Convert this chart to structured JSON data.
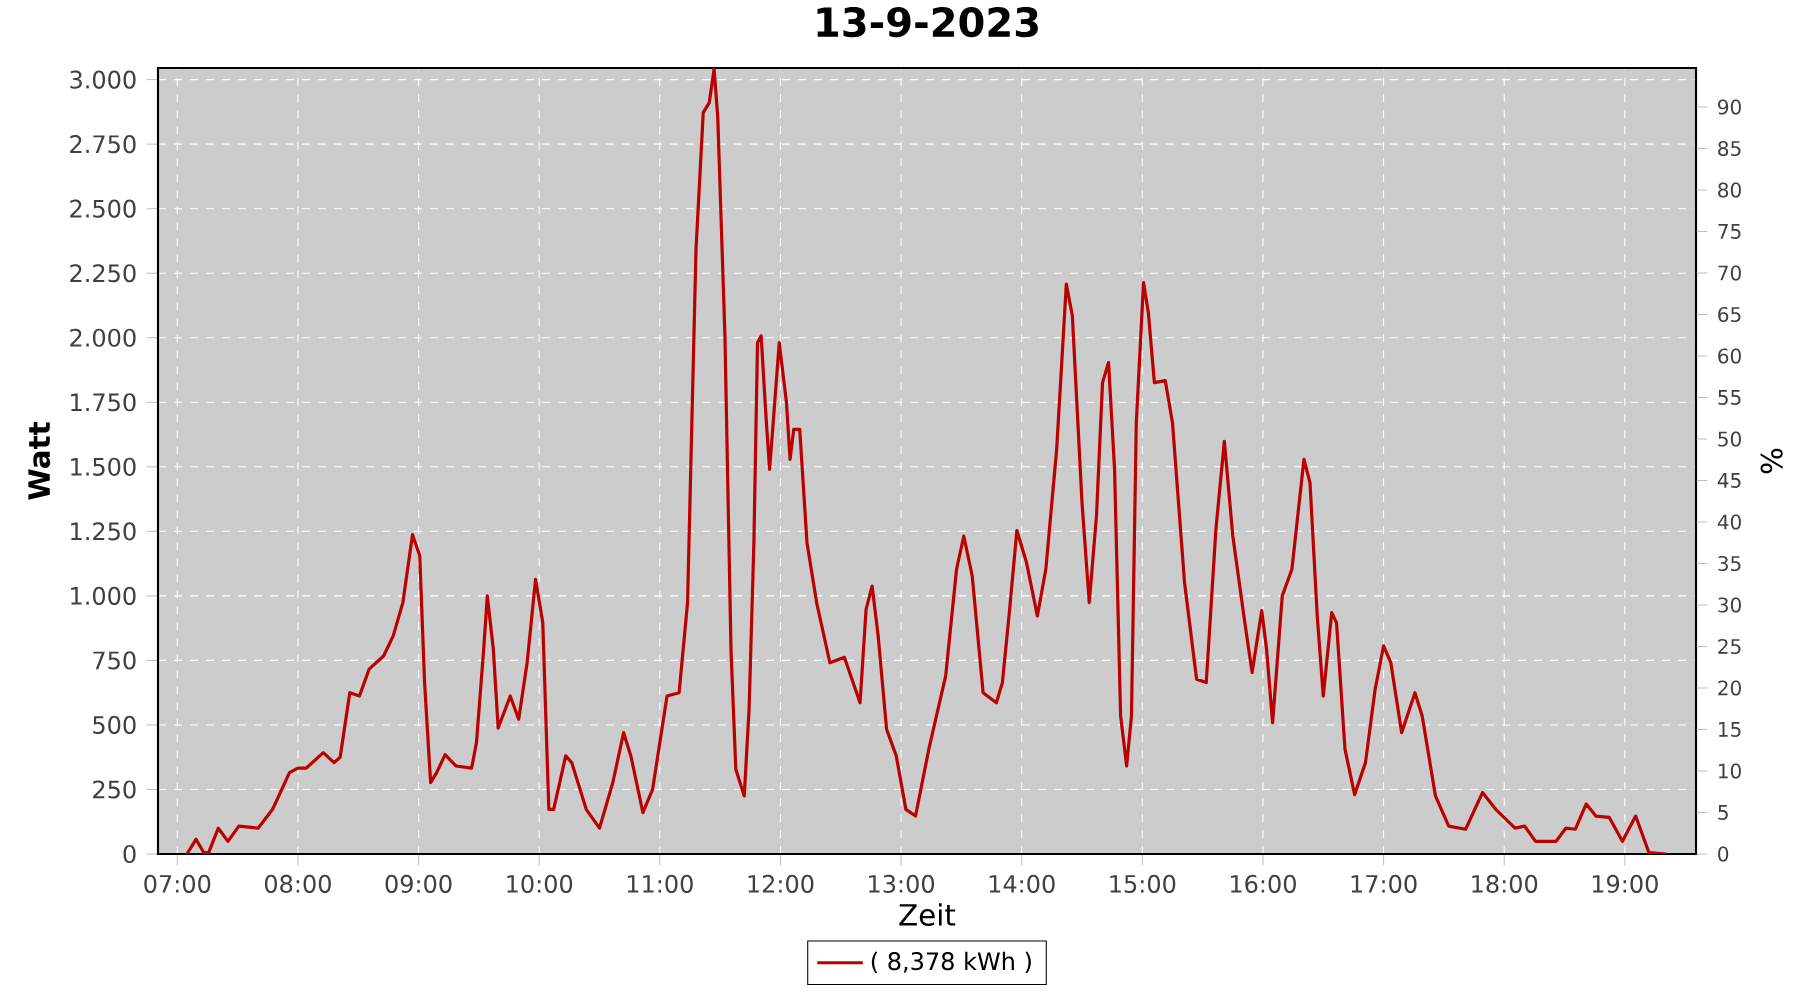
{
  "chart_data": {
    "type": "line",
    "title": "13-9-2023",
    "xlabel": "Zeit",
    "ylabel": "Watt",
    "y2label": "%",
    "x": [
      7.08,
      7.155,
      7.22,
      7.26,
      7.34,
      7.42,
      7.51,
      7.67,
      7.79,
      7.93,
      8.0,
      8.07,
      8.21,
      8.3,
      8.35,
      8.43,
      8.51,
      8.59,
      8.71,
      8.79,
      8.87,
      8.95,
      9.01,
      9.05,
      9.1,
      9.15,
      9.22,
      9.31,
      9.44,
      9.48,
      9.54,
      9.57,
      9.62,
      9.66,
      9.76,
      9.83,
      9.9,
      9.97,
      10.03,
      10.08,
      10.12,
      10.22,
      10.27,
      10.39,
      10.5,
      10.61,
      10.7,
      10.76,
      10.86,
      10.94,
      11.06,
      11.16,
      11.23,
      11.3,
      11.36,
      11.41,
      11.45,
      11.48,
      11.54,
      11.59,
      11.63,
      11.7,
      11.74,
      11.78,
      11.81,
      11.84,
      11.88,
      11.91,
      11.94,
      11.99,
      12.05,
      12.08,
      12.11,
      12.16,
      12.22,
      12.3,
      12.41,
      12.53,
      12.66,
      12.71,
      12.76,
      12.81,
      12.88,
      12.96,
      13.04,
      13.12,
      13.23,
      13.37,
      13.46,
      13.52,
      13.59,
      13.68,
      13.79,
      13.84,
      13.9,
      13.96,
      14.04,
      14.13,
      14.2,
      14.29,
      14.37,
      14.42,
      14.5,
      14.56,
      14.62,
      14.67,
      14.72,
      14.77,
      14.82,
      14.87,
      14.91,
      14.95,
      15.01,
      15.05,
      15.1,
      15.19,
      15.25,
      15.35,
      15.45,
      15.53,
      15.61,
      15.68,
      15.75,
      15.85,
      15.91,
      15.99,
      16.03,
      16.08,
      16.16,
      16.24,
      16.34,
      16.39,
      16.45,
      16.5,
      16.57,
      16.61,
      16.68,
      16.76,
      16.85,
      16.93,
      17.0,
      17.06,
      17.15,
      17.26,
      17.32,
      17.43,
      17.54,
      17.68,
      17.82,
      17.93,
      18.09,
      18.17,
      18.26,
      18.43,
      18.51,
      18.59,
      18.68,
      18.76,
      18.87,
      18.98,
      19.09,
      19.2,
      19.34
    ],
    "series": [
      {
        "name": "( 8,378 kWh )",
        "color": "#bb0000",
        "values": [
          0,
          57,
          5,
          5,
          100,
          49,
          108,
          100,
          173,
          315,
          333,
          333,
          393,
          354,
          375,
          625,
          612,
          716,
          767,
          845,
          974,
          1237,
          1155,
          664,
          276,
          315,
          385,
          341,
          333,
          431,
          793,
          1000,
          793,
          488,
          612,
          522,
          741,
          1064,
          896,
          173,
          173,
          380,
          354,
          173,
          100,
          276,
          470,
          380,
          160,
          250,
          612,
          625,
          974,
          2343,
          2872,
          2911,
          3040,
          2859,
          2007,
          793,
          328,
          225,
          560,
          1206,
          1981,
          2007,
          1697,
          1490,
          1671,
          1981,
          1749,
          1529,
          1645,
          1645,
          1206,
          974,
          741,
          762,
          586,
          948,
          1038,
          845,
          483,
          380,
          173,
          147,
          406,
          690,
          1103,
          1232,
          1077,
          625,
          586,
          664,
          948,
          1253,
          1129,
          922,
          1103,
          1568,
          2208,
          2085,
          1361,
          974,
          1310,
          1826,
          1904,
          1490,
          535,
          341,
          535,
          1671,
          2214,
          2097,
          1826,
          1834,
          1671,
          1051,
          677,
          664,
          1258,
          1599,
          1232,
          896,
          703,
          943,
          793,
          509,
          1000,
          1103,
          1529,
          1439,
          922,
          612,
          935,
          896,
          406,
          230,
          354,
          638,
          806,
          741,
          470,
          625,
          535,
          225,
          108,
          96,
          238,
          173,
          100,
          108,
          49,
          49,
          100,
          96,
          194,
          147,
          142,
          49,
          147,
          5,
          0
        ]
      }
    ],
    "xlim": [
      6.84,
      19.59
    ],
    "ylim": [
      0,
      3045
    ],
    "y2lim": [
      0,
      94.7
    ],
    "xticks": [
      {
        "value": 7,
        "label": "07:00"
      },
      {
        "value": 8,
        "label": "08:00"
      },
      {
        "value": 9,
        "label": "09:00"
      },
      {
        "value": 10,
        "label": "10:00"
      },
      {
        "value": 11,
        "label": "11:00"
      },
      {
        "value": 12,
        "label": "12:00"
      },
      {
        "value": 13,
        "label": "13:00"
      },
      {
        "value": 14,
        "label": "14:00"
      },
      {
        "value": 15,
        "label": "15:00"
      },
      {
        "value": 16,
        "label": "16:00"
      },
      {
        "value": 17,
        "label": "17:00"
      },
      {
        "value": 18,
        "label": "18:00"
      },
      {
        "value": 19,
        "label": "19:00"
      }
    ],
    "yticks": [
      0,
      250,
      500,
      750,
      {
        "value": 1000,
        "label": "1.000"
      },
      {
        "value": 1250,
        "label": "1.250"
      },
      {
        "value": 1500,
        "label": "1.500"
      },
      {
        "value": 1750,
        "label": "1.750"
      },
      {
        "value": 2000,
        "label": "2.000"
      },
      {
        "value": 2250,
        "label": "2.250"
      },
      {
        "value": 2500,
        "label": "2.500"
      },
      {
        "value": 2750,
        "label": "2.750"
      },
      {
        "value": 3000,
        "label": "3.000"
      }
    ],
    "y2ticks": [
      0,
      5,
      10,
      15,
      20,
      25,
      30,
      35,
      40,
      45,
      50,
      55,
      60,
      65,
      70,
      75,
      80,
      85,
      90
    ],
    "grid": true,
    "legend": "bottom",
    "line_style": "solid"
  }
}
